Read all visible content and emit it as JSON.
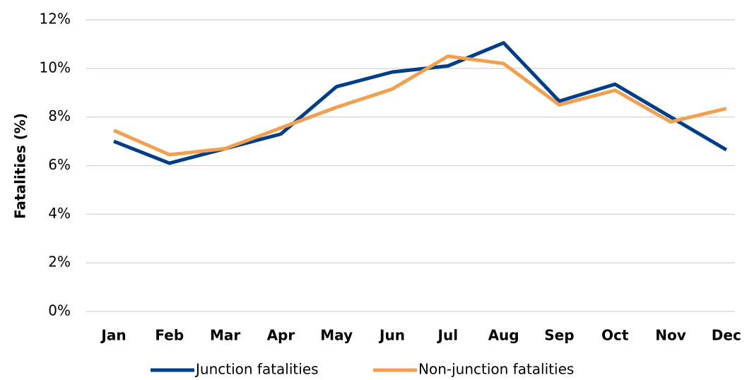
{
  "chart_data": {
    "type": "line",
    "y_label": "Fatalities (%)",
    "categories": [
      "Jan",
      "Feb",
      "Mar",
      "Apr",
      "May",
      "Jun",
      "Jul",
      "Aug",
      "Sep",
      "Oct",
      "Nov",
      "Dec"
    ],
    "series": [
      {
        "name": "Junction fatalities",
        "color": "#003f87",
        "values": [
          7.0,
          6.1,
          6.7,
          7.3,
          9.25,
          9.85,
          10.1,
          11.05,
          8.65,
          9.35,
          8.0,
          6.65
        ]
      },
      {
        "name": "Non-junction fatalities",
        "color": "#f0a050",
        "values": [
          7.45,
          6.45,
          6.7,
          7.55,
          8.4,
          9.15,
          10.5,
          10.2,
          8.5,
          9.1,
          7.8,
          8.35
        ]
      }
    ],
    "ylim": [
      0,
      12
    ],
    "yticks": [
      {
        "value": 0,
        "label": "0%"
      },
      {
        "value": 2,
        "label": "2%"
      },
      {
        "value": 4,
        "label": "4%"
      },
      {
        "value": 6,
        "label": "6%"
      },
      {
        "value": 8,
        "label": "8%"
      },
      {
        "value": 10,
        "label": "10%"
      },
      {
        "value": 12,
        "label": "12%"
      }
    ],
    "grid": true,
    "legend": "bottom"
  }
}
